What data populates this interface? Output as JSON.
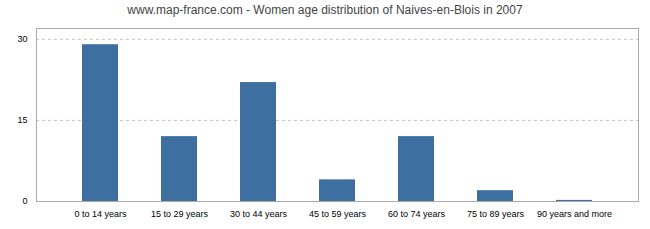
{
  "chart_data": {
    "type": "bar",
    "title": "www.map-france.com - Women age distribution of Naives-en-Blois in 2007",
    "categories": [
      "0 to 14 years",
      "15 to 29 years",
      "30 to 44 years",
      "45 to 59 years",
      "60 to 74 years",
      "75 to 89 years",
      "90 years and more"
    ],
    "values": [
      29,
      12,
      22,
      4,
      12,
      2,
      0.2
    ],
    "color": "#3d6fa0",
    "ylim": [
      0,
      32
    ],
    "yticks": [
      0,
      15,
      30
    ],
    "grid": true
  }
}
